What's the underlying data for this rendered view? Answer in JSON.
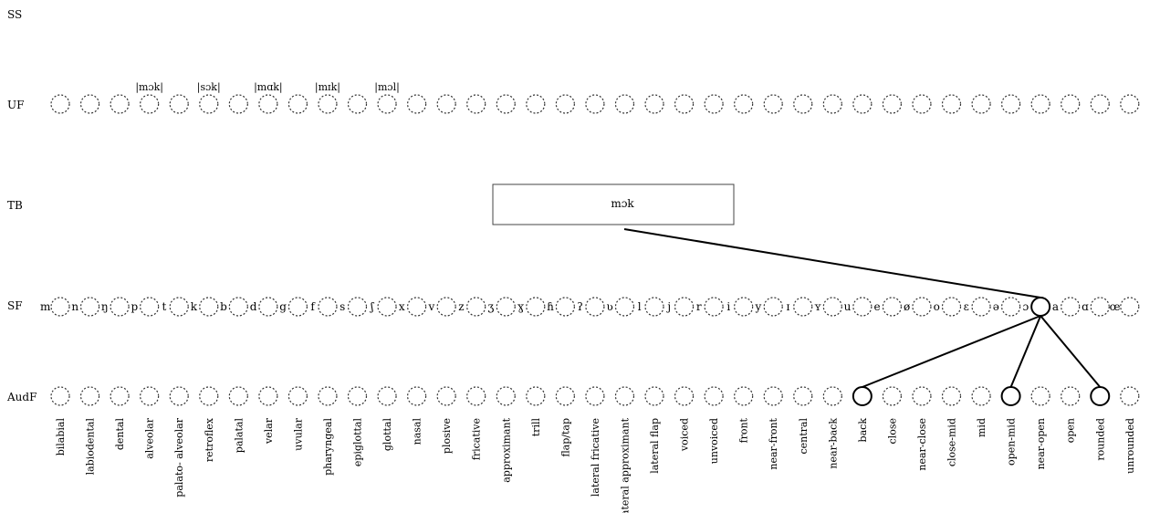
{
  "rows": {
    "ss": "SS",
    "uf": "UF",
    "tb": "TB",
    "sf": "SF",
    "audf": "AudF"
  },
  "uf_labels": [
    {
      "index": 3,
      "text": "|mɔk|"
    },
    {
      "index": 5,
      "text": "|sɔk|"
    },
    {
      "index": 7,
      "text": "|mɑk|"
    },
    {
      "index": 9,
      "text": "|mɪk|"
    },
    {
      "index": 11,
      "text": "|mɔl|"
    }
  ],
  "tb": {
    "text": "mɔk"
  },
  "sf_symbols": [
    "m",
    "n",
    "ŋ",
    "p",
    "t",
    "k",
    "b",
    "d",
    "g",
    "f",
    "s",
    "ʃ",
    "x",
    "v",
    "z",
    "ʒ",
    "ɣ",
    "ɦ",
    "ʔ",
    "ʋ",
    "l",
    "j",
    "r",
    "i",
    "y",
    "ɪ",
    "ʏ",
    "u",
    "e",
    "ø",
    "o",
    "ɛ",
    "ə",
    "ɔ",
    "a",
    "ɑ",
    "œ"
  ],
  "sf_active": [
    33
  ],
  "features": [
    "bilabial",
    "labiodental",
    "dental",
    "alveolar",
    "palato- alveolar",
    "retroflex",
    "palatal",
    "velar",
    "uvular",
    "pharyngeal",
    "epiglottal",
    "glottal",
    "nasal",
    "plosive",
    "fricative",
    "approximant",
    "trill",
    "flap/tap",
    "lateral fricative",
    "lateral approximant",
    "lateral flap",
    "voiced",
    "unvoiced",
    "front",
    "near-front",
    "central",
    "near-back",
    "back",
    "close",
    "near-close",
    "close-mid",
    "mid",
    "open-mid",
    "near-open",
    "open",
    "rounded",
    "unrounded"
  ],
  "audf_active": [
    27,
    32,
    35
  ],
  "colors": {
    "line": "#000000",
    "dotted": "#333333"
  }
}
